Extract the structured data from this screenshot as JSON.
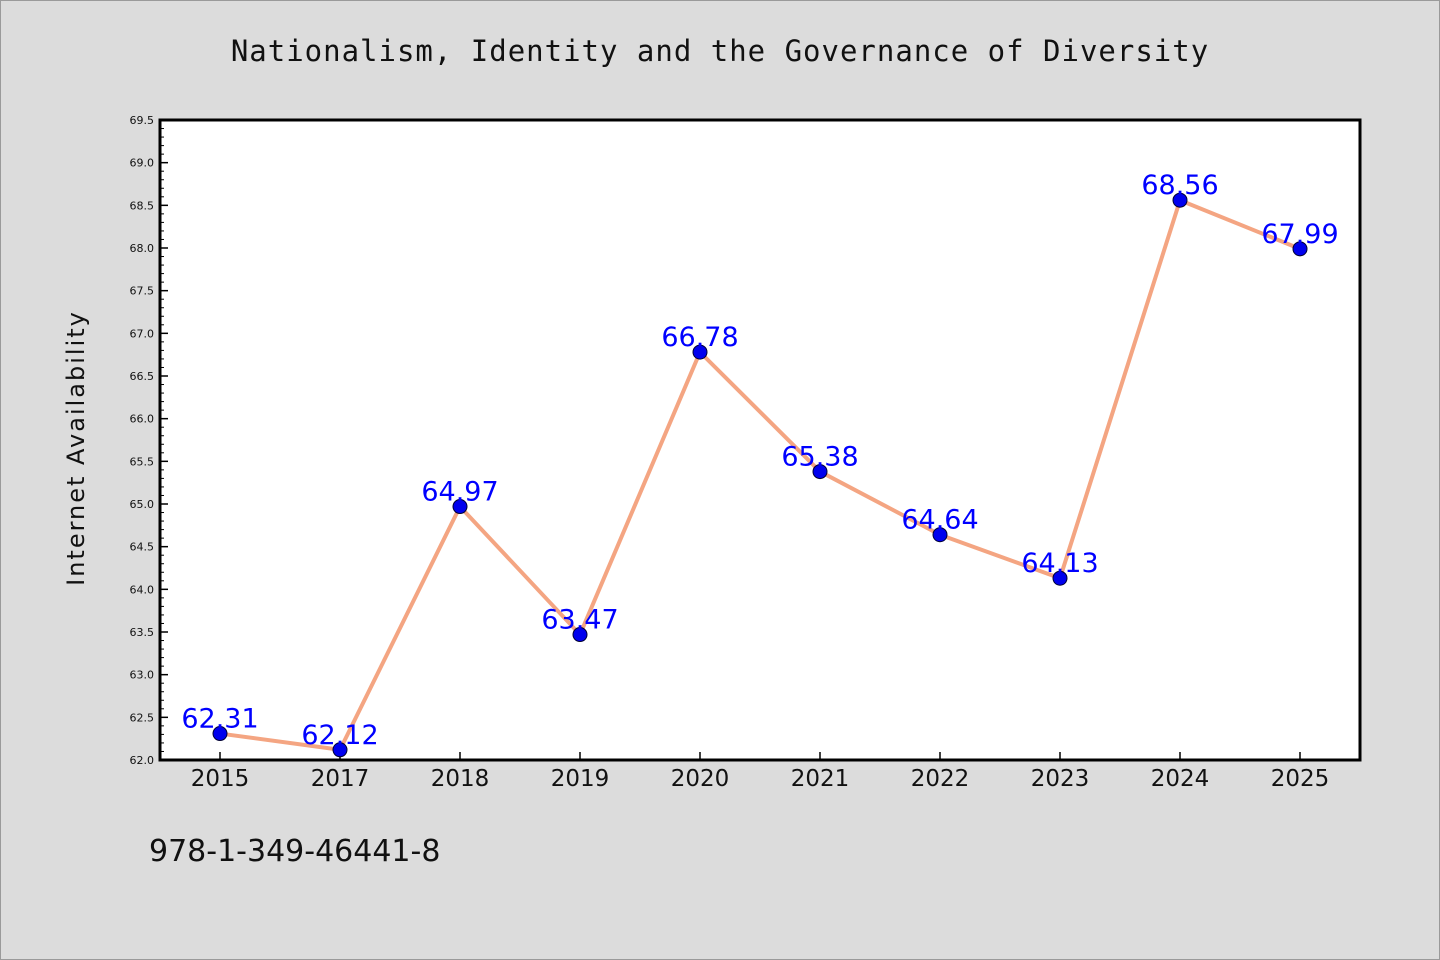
{
  "footer": {
    "isbn": "978-1-349-46441-8"
  },
  "chart_data": {
    "type": "line",
    "title": "Nationalism, Identity and the Governance of Diversity",
    "xlabel": "",
    "ylabel": "Internet Availability",
    "categories": [
      "2015",
      "2017",
      "2018",
      "2019",
      "2020",
      "2021",
      "2022",
      "2023",
      "2024",
      "2025"
    ],
    "series": [
      {
        "values": [
          62.31,
          62.12,
          64.97,
          63.47,
          66.78,
          65.38,
          64.64,
          64.13,
          68.56,
          67.99
        ]
      }
    ],
    "data_labels": [
      "62.31",
      "62.12",
      "64.97",
      "63.47",
      "66.78",
      "65.38",
      "64.64",
      "64.13",
      "68.56",
      "67.99"
    ],
    "ylim": [
      62.0,
      69.5
    ],
    "y_ticks": [
      "62.0",
      "62.5",
      "63.0",
      "63.5",
      "64.0",
      "64.5",
      "65.0",
      "65.5",
      "66.0",
      "66.5",
      "67.0",
      "67.5",
      "68.0",
      "68.5",
      "69.0",
      "69.5"
    ],
    "grid": false,
    "legend": "none",
    "colors": {
      "line": "#f4a582",
      "marker": "#0000ee",
      "label": "#0000ff",
      "plot_bg": "#ffffff",
      "page_bg": "#dcdcdc"
    }
  }
}
